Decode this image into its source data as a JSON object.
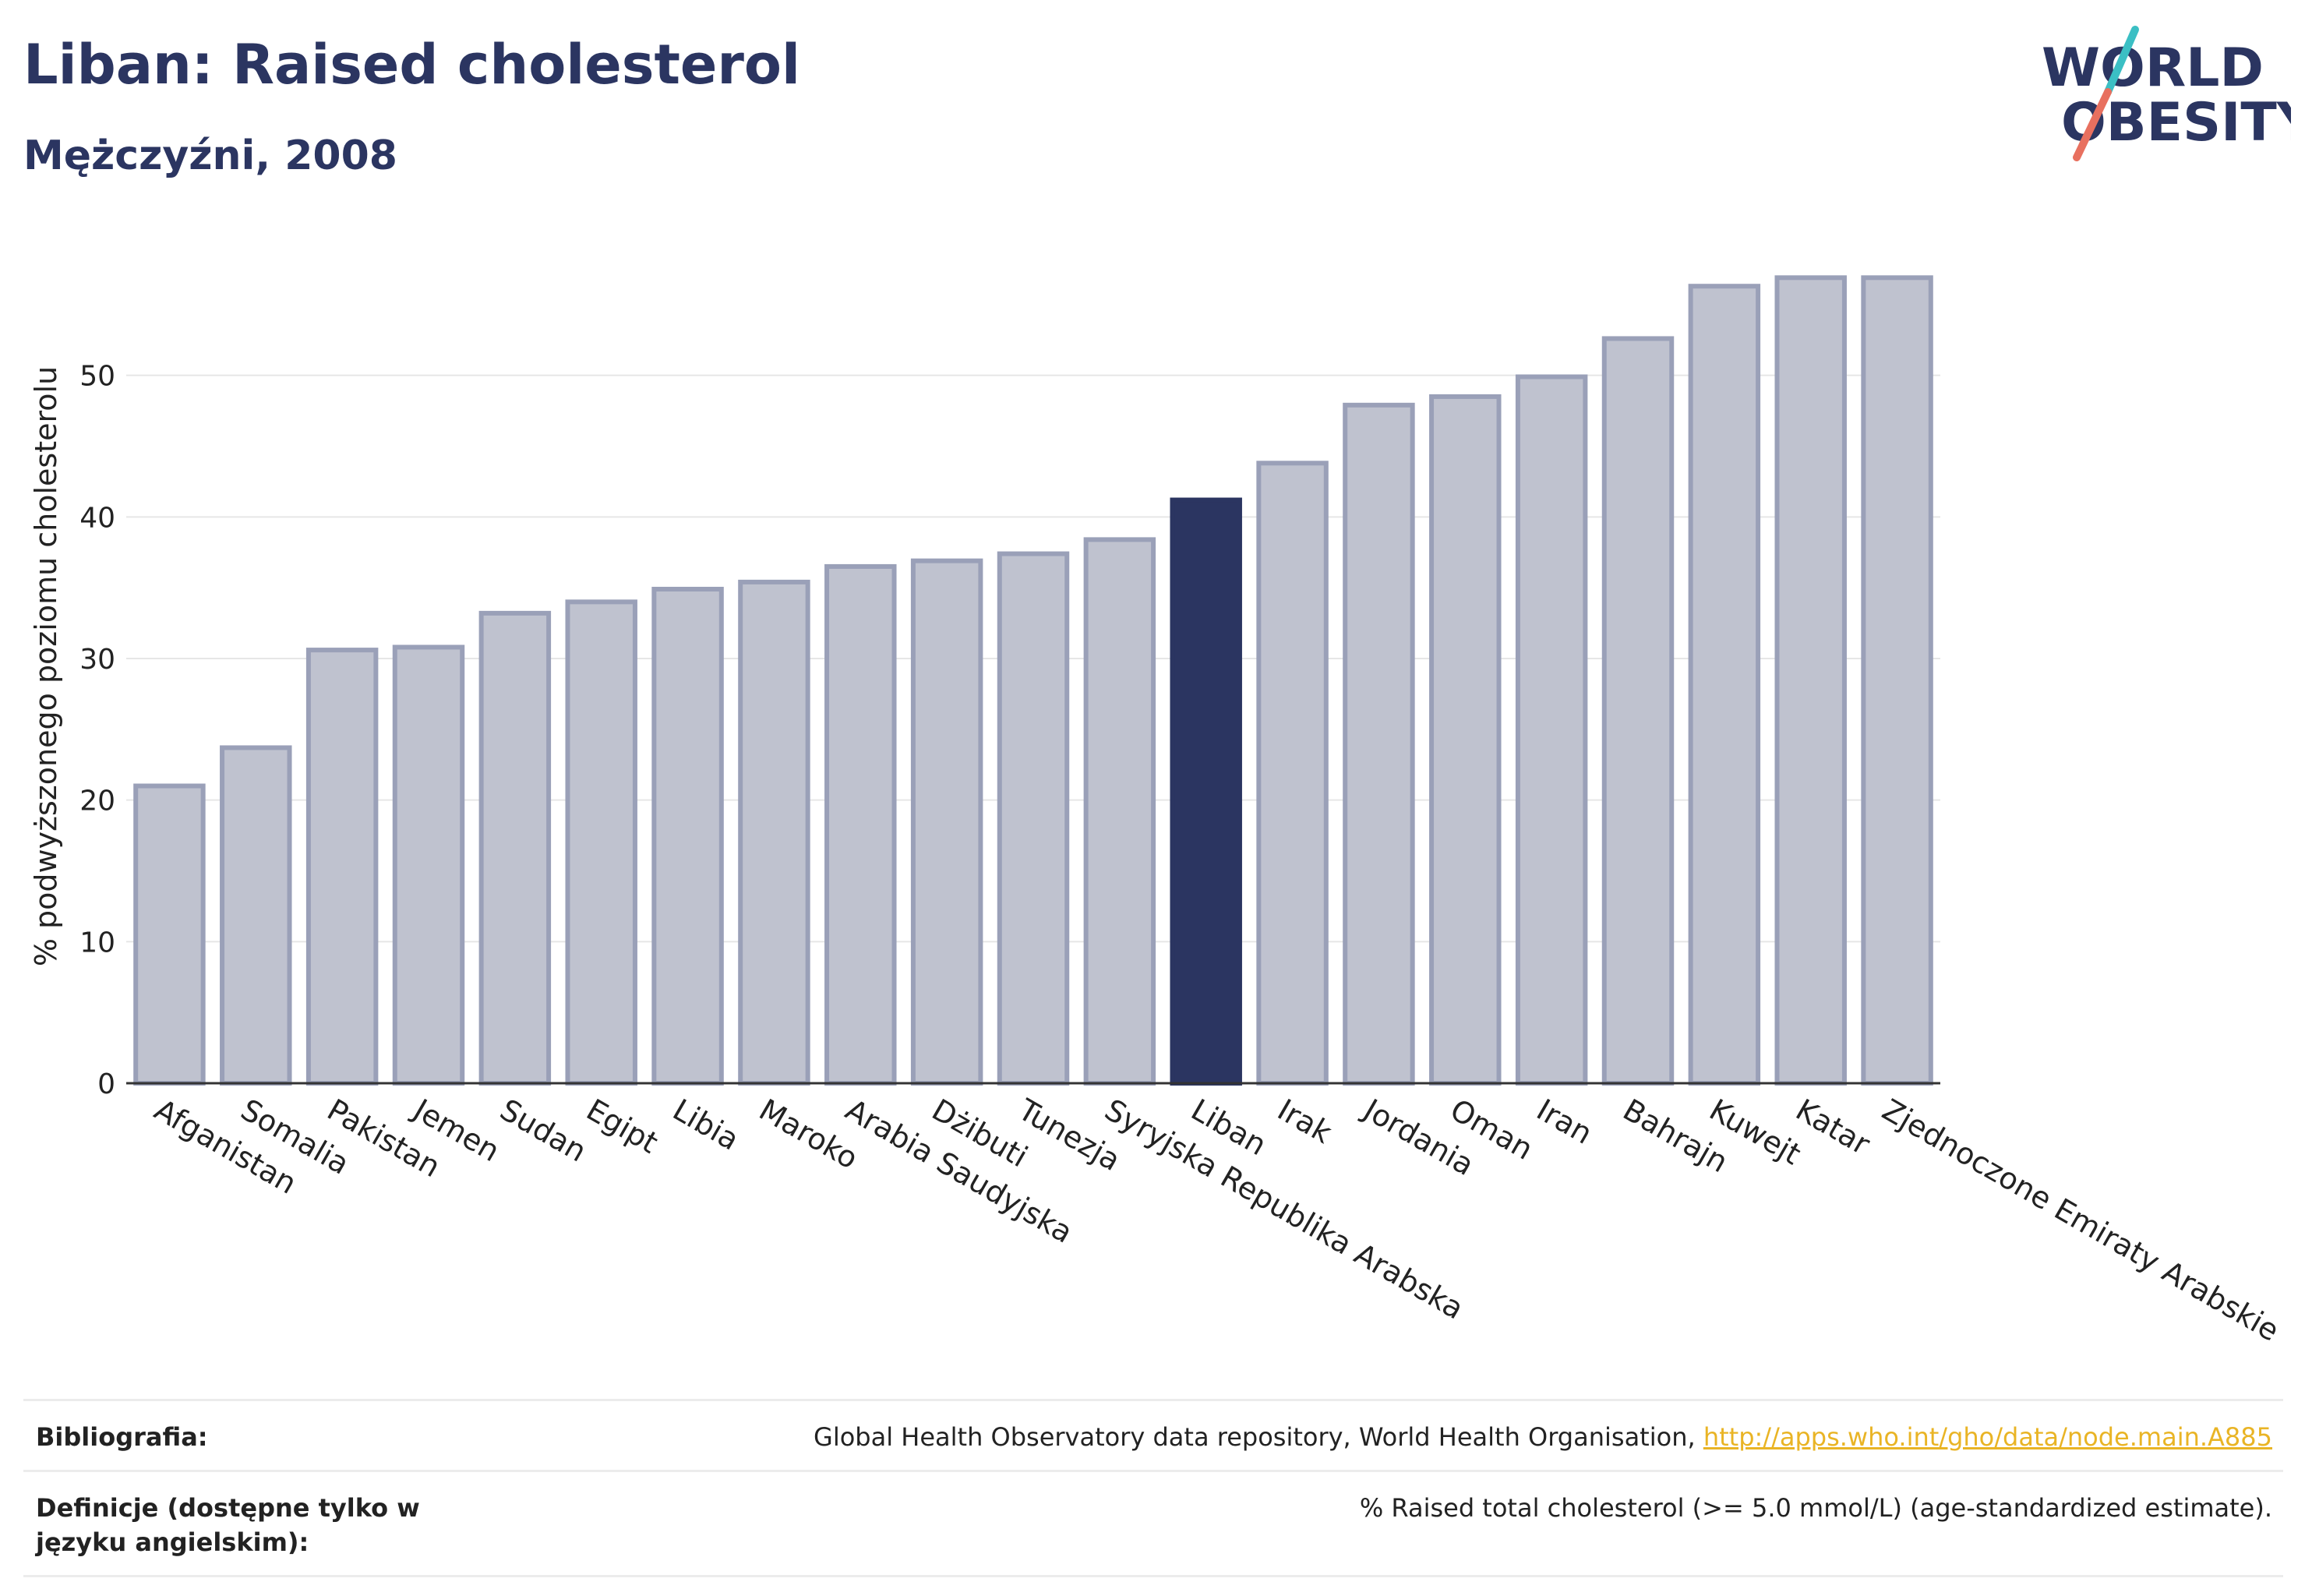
{
  "header": {
    "title": "Liban: Raised cholesterol",
    "subtitle": "Mężczyźni, 2008"
  },
  "logo": {
    "line1": "WORLD",
    "line2": "OBESITY",
    "slash_color_top": "#3bbfc4",
    "slash_color_bottom": "#e8705f",
    "text_color": "#2b3561"
  },
  "chart_data": {
    "type": "bar",
    "title": "Liban: Raised cholesterol",
    "subtitle": "Mężczyźni, 2008",
    "ylabel": "% podwyższonego poziomu cholesterolu",
    "xlabel": "",
    "ylim": [
      0,
      60
    ],
    "yticks": [
      0,
      10,
      20,
      30,
      40,
      50
    ],
    "grid": true,
    "highlight_category": "Liban",
    "colors": {
      "bar": "#bfc2cf",
      "bar_border": "#9aa0b8",
      "highlight": "#2b3561",
      "grid": "#e6e6e6",
      "axis": "#333333"
    },
    "categories": [
      "Afganistan",
      "Somalia",
      "Pakistan",
      "Jemen",
      "Sudan",
      "Egipt",
      "Libia",
      "Maroko",
      "Arabia Saudyjska",
      "Dżibuti",
      "Tunezja",
      "Syryjska Republika Arabska",
      "Liban",
      "Irak",
      "Jordania",
      "Oman",
      "Iran",
      "Bahrajn",
      "Kuwejt",
      "Katar",
      "Zjednoczone Emiraty Arabskie"
    ],
    "values": [
      21.0,
      23.7,
      30.6,
      30.8,
      33.2,
      34.0,
      34.9,
      35.4,
      36.5,
      36.9,
      37.4,
      38.4,
      41.2,
      43.8,
      47.9,
      48.5,
      49.9,
      52.6,
      56.3,
      56.9,
      56.9
    ]
  },
  "footer": {
    "bibliography_label": "Bibliografia:",
    "bibliography_text": "Global Health Observatory data repository, World Health Organisation, ",
    "bibliography_link": "http://apps.who.int/gho/data/node.main.A885",
    "definitions_label": "Definicje (dostępne tylko w języku angielskim):",
    "definitions_text": "% Raised total cholesterol (>= 5.0 mmol/L) (age-standardized estimate)."
  }
}
